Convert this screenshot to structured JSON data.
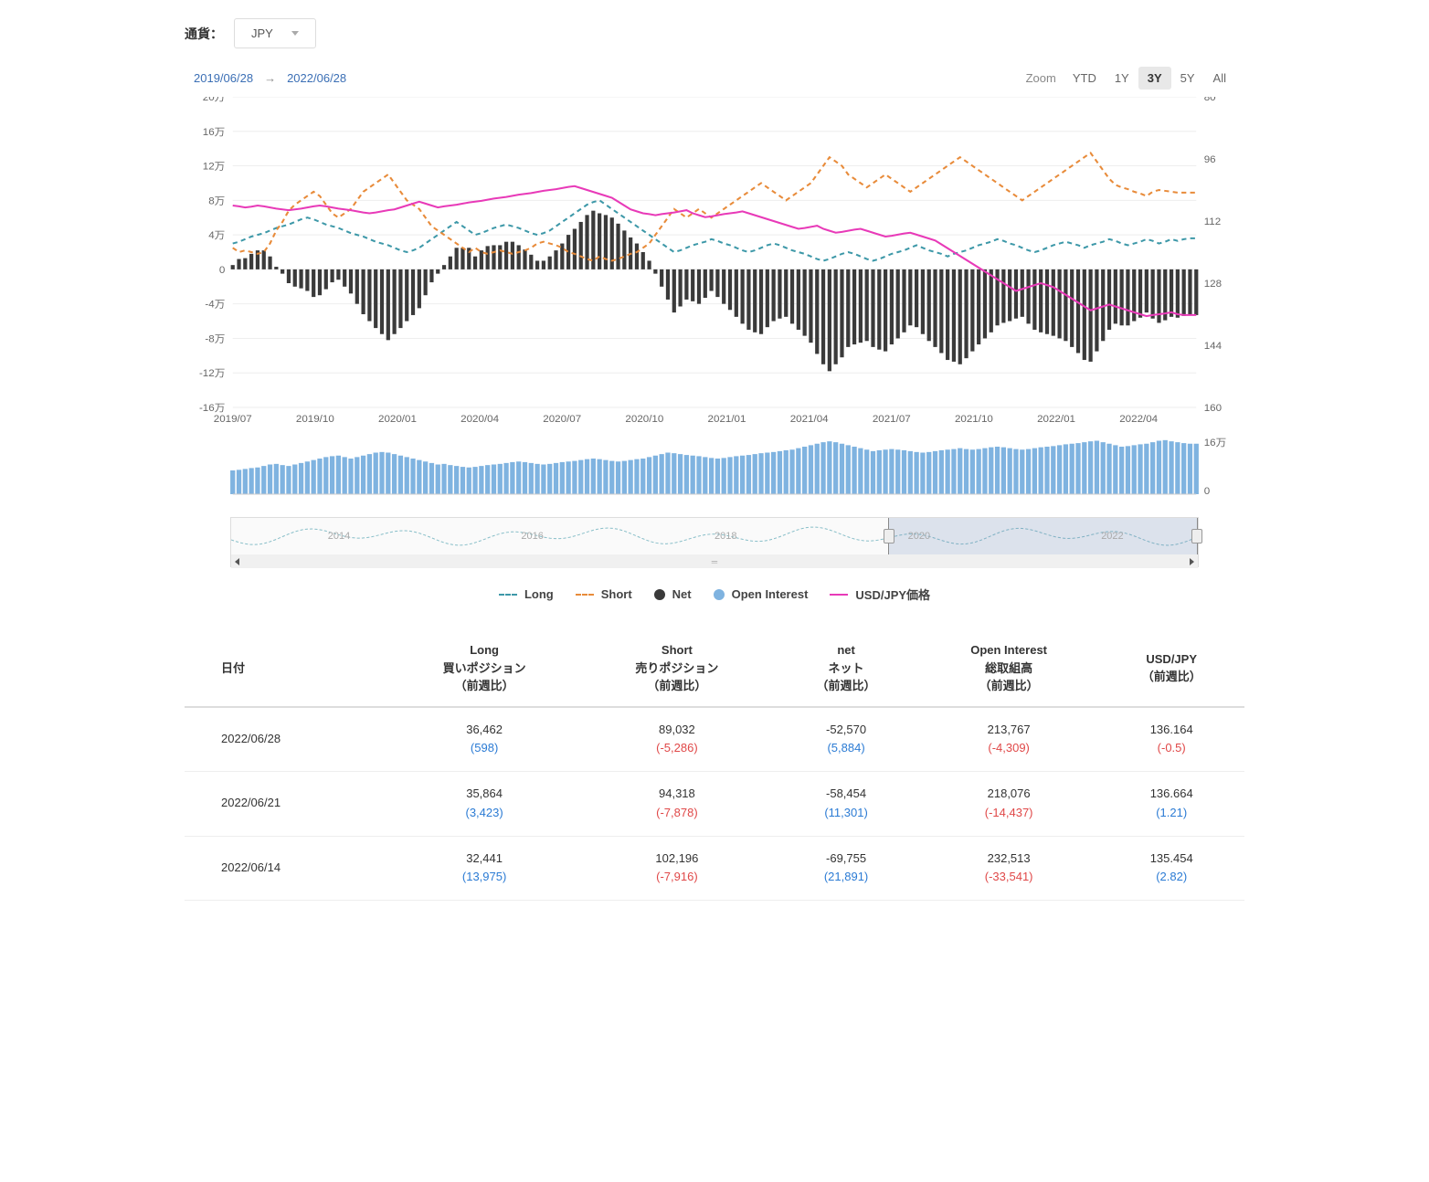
{
  "currency": {
    "label": "通貨：",
    "value": "JPY"
  },
  "dateRange": {
    "from": "2019/06/28",
    "to": "2022/06/28"
  },
  "zoom": {
    "label": "Zoom",
    "options": [
      "YTD",
      "1Y",
      "3Y",
      "5Y",
      "All"
    ],
    "active": "3Y"
  },
  "chart": {
    "left_axis_label_suffix": "万",
    "left_ticks": [
      20,
      16,
      12,
      8,
      4,
      0,
      -4,
      -8,
      -12,
      -16
    ],
    "right_ticks": [
      80,
      96,
      112,
      128,
      144,
      160
    ],
    "x_labels": [
      "2019/07",
      "2019/10",
      "2020/01",
      "2020/04",
      "2020/07",
      "2020/10",
      "2021/01",
      "2021/04",
      "2021/07",
      "2021/10",
      "2022/01",
      "2022/04"
    ],
    "colors": {
      "long": "#3d98a8",
      "short": "#e88b3a",
      "net": "#3a3a3a",
      "oi": "#7fb3e0",
      "price": "#e83ab8",
      "grid": "#eeeeee",
      "bg": "#ffffff"
    },
    "long_series": [
      3.0,
      3.2,
      3.5,
      3.8,
      4.0,
      4.2,
      4.5,
      4.8,
      5.0,
      5.2,
      5.5,
      5.8,
      6.0,
      5.8,
      5.5,
      5.2,
      5.0,
      4.8,
      4.5,
      4.2,
      4.0,
      3.8,
      3.5,
      3.2,
      3.0,
      2.8,
      2.5,
      2.2,
      2.0,
      2.2,
      2.5,
      3.0,
      3.5,
      4.0,
      4.5,
      5.0,
      5.5,
      5.0,
      4.5,
      4.0,
      4.2,
      4.5,
      4.8,
      5.0,
      5.2,
      5.0,
      4.8,
      4.5,
      4.2,
      4.0,
      4.2,
      4.5,
      5.0,
      5.5,
      6.0,
      6.5,
      7.0,
      7.5,
      7.8,
      8.0,
      7.5,
      7.0,
      6.5,
      6.0,
      5.5,
      5.0,
      4.5,
      4.0,
      3.5,
      3.0,
      2.5,
      2.0,
      2.2,
      2.5,
      2.8,
      3.0,
      3.2,
      3.5,
      3.3,
      3.0,
      2.8,
      2.5,
      2.2,
      2.0,
      2.2,
      2.5,
      2.8,
      3.0,
      2.8,
      2.5,
      2.2,
      2.0,
      1.8,
      1.5,
      1.2,
      1.0,
      1.2,
      1.5,
      1.8,
      2.0,
      1.8,
      1.5,
      1.2,
      1.0,
      1.2,
      1.5,
      1.8,
      2.0,
      2.2,
      2.5,
      2.8,
      2.5,
      2.2,
      2.0,
      1.8,
      1.5,
      1.8,
      2.0,
      2.2,
      2.5,
      2.8,
      3.0,
      3.2,
      3.5,
      3.3,
      3.0,
      2.8,
      2.5,
      2.2,
      2.0,
      2.2,
      2.5,
      2.8,
      3.0,
      3.2,
      3.0,
      2.8,
      2.5,
      2.8,
      3.0,
      3.2,
      3.5,
      3.3,
      3.0,
      2.8,
      3.0,
      3.2,
      3.5,
      3.3,
      3.0,
      3.2,
      3.5,
      3.3,
      3.5,
      3.6,
      3.6
    ],
    "short_series": [
      2.5,
      2.0,
      2.2,
      2.0,
      1.8,
      2.0,
      3.0,
      4.5,
      5.5,
      6.8,
      7.5,
      8.0,
      8.5,
      9.0,
      8.5,
      7.5,
      6.5,
      6.0,
      6.5,
      7.0,
      8.0,
      9.0,
      9.5,
      10.0,
      10.5,
      11.0,
      10.0,
      9.0,
      8.0,
      7.5,
      7.0,
      6.0,
      5.0,
      4.5,
      4.0,
      3.5,
      3.0,
      2.5,
      2.0,
      2.5,
      2.0,
      1.8,
      2.0,
      2.2,
      2.0,
      1.8,
      2.0,
      2.2,
      2.5,
      3.0,
      3.2,
      3.0,
      2.8,
      2.5,
      2.0,
      1.8,
      1.5,
      1.2,
      1.0,
      1.5,
      1.2,
      1.0,
      1.2,
      1.5,
      1.8,
      2.0,
      2.5,
      3.0,
      4.0,
      5.0,
      6.0,
      7.0,
      6.5,
      6.0,
      6.5,
      7.0,
      6.5,
      6.0,
      6.5,
      7.0,
      7.5,
      8.0,
      8.5,
      9.0,
      9.5,
      10.0,
      9.5,
      9.0,
      8.5,
      8.0,
      8.5,
      9.0,
      9.5,
      10.0,
      11.0,
      12.0,
      13.0,
      12.5,
      12.0,
      11.0,
      10.5,
      10.0,
      9.5,
      10.0,
      10.5,
      11.0,
      10.5,
      10.0,
      9.5,
      9.0,
      9.5,
      10.0,
      10.5,
      11.0,
      11.5,
      12.0,
      12.5,
      13.0,
      12.5,
      12.0,
      11.5,
      11.0,
      10.5,
      10.0,
      9.5,
      9.0,
      8.5,
      8.0,
      8.5,
      9.0,
      9.5,
      10.0,
      10.5,
      11.0,
      11.5,
      12.0,
      12.5,
      13.0,
      13.5,
      12.5,
      11.5,
      10.5,
      9.8,
      9.5,
      9.3,
      9.0,
      8.8,
      8.5,
      9.0,
      9.2,
      9.1,
      9.0,
      8.9,
      8.9,
      8.9,
      8.9
    ],
    "net_series": [
      0.5,
      1.2,
      1.3,
      1.8,
      2.2,
      2.2,
      1.5,
      0.3,
      -0.5,
      -1.6,
      -2.0,
      -2.2,
      -2.5,
      -3.2,
      -3.0,
      -2.3,
      -1.5,
      -1.2,
      -2.0,
      -2.8,
      -4.0,
      -5.2,
      -6.0,
      -6.8,
      -7.5,
      -8.2,
      -7.5,
      -6.8,
      -6.0,
      -5.3,
      -4.5,
      -3.0,
      -1.5,
      -0.5,
      0.5,
      1.5,
      2.5,
      2.5,
      2.5,
      1.5,
      2.2,
      2.7,
      2.8,
      2.8,
      3.2,
      3.2,
      2.8,
      2.3,
      1.7,
      1.0,
      1.0,
      1.5,
      2.2,
      3.0,
      4.0,
      4.7,
      5.5,
      6.3,
      6.8,
      6.5,
      6.3,
      6.0,
      5.3,
      4.5,
      3.7,
      3.0,
      2.0,
      1.0,
      -0.5,
      -2.0,
      -3.5,
      -5.0,
      -4.3,
      -3.5,
      -3.7,
      -4.0,
      -3.3,
      -2.5,
      -3.2,
      -4.0,
      -4.7,
      -5.5,
      -6.3,
      -7.0,
      -7.3,
      -7.5,
      -6.7,
      -6.0,
      -5.7,
      -5.5,
      -6.3,
      -7.0,
      -7.7,
      -8.5,
      -9.8,
      -11.0,
      -11.8,
      -11.0,
      -10.2,
      -9.0,
      -8.7,
      -8.5,
      -8.3,
      -9.0,
      -9.3,
      -9.5,
      -8.7,
      -8.0,
      -7.3,
      -6.5,
      -6.7,
      -7.5,
      -8.3,
      -9.0,
      -9.7,
      -10.5,
      -10.7,
      -11.0,
      -10.3,
      -9.5,
      -8.7,
      -8.0,
      -7.3,
      -6.5,
      -6.2,
      -6.0,
      -5.7,
      -5.5,
      -6.3,
      -7.0,
      -7.3,
      -7.5,
      -7.7,
      -8.0,
      -8.3,
      -9.0,
      -9.7,
      -10.5,
      -10.7,
      -9.5,
      -8.3,
      -7.0,
      -6.3,
      -6.5,
      -6.5,
      -6.0,
      -5.6,
      -5.0,
      -5.7,
      -6.2,
      -5.9,
      -5.5,
      -5.6,
      -5.4,
      -5.3,
      -5.3
    ],
    "price_series": [
      108,
      108.2,
      108.5,
      108.3,
      108.0,
      108.2,
      108.5,
      108.8,
      109.0,
      109.2,
      109.0,
      108.8,
      108.5,
      108.2,
      108.0,
      108.2,
      108.5,
      108.8,
      109.0,
      109.2,
      109.5,
      109.8,
      110.0,
      109.8,
      109.5,
      109.2,
      109.0,
      108.5,
      108.0,
      107.5,
      107.0,
      107.5,
      108.0,
      108.5,
      108.2,
      108.0,
      107.8,
      107.5,
      107.2,
      107.0,
      106.8,
      106.5,
      106.2,
      106.0,
      105.8,
      105.5,
      105.2,
      105.0,
      104.8,
      104.5,
      104.2,
      104.0,
      103.8,
      103.5,
      103.2,
      103.0,
      103.5,
      104.0,
      104.5,
      105.0,
      105.5,
      106.0,
      107.0,
      108.0,
      109.0,
      109.5,
      110.0,
      110.2,
      110.5,
      110.2,
      110.0,
      109.8,
      109.5,
      109.2,
      110.0,
      110.5,
      111.0,
      110.8,
      110.5,
      110.2,
      110.0,
      109.8,
      109.5,
      110.0,
      110.5,
      111.0,
      111.5,
      112.0,
      112.5,
      113.0,
      113.5,
      114.0,
      113.8,
      113.5,
      113.2,
      114.0,
      114.5,
      115.0,
      114.8,
      114.5,
      114.2,
      114.0,
      114.5,
      115.0,
      115.5,
      116.0,
      115.8,
      115.5,
      115.2,
      115.0,
      115.5,
      116.0,
      116.5,
      117.0,
      118.0,
      119.0,
      120.0,
      121.0,
      122.0,
      123.0,
      124.0,
      125.0,
      126.0,
      127.0,
      128.0,
      129.0,
      130.0,
      129.5,
      129.0,
      128.5,
      128.0,
      128.5,
      129.0,
      130.0,
      131.0,
      132.0,
      133.0,
      134.0,
      135.0,
      134.5,
      134.0,
      133.5,
      134.0,
      134.5,
      135.0,
      135.5,
      136.0,
      136.5,
      136.2,
      136.0,
      135.8,
      135.5,
      136.0,
      136.2,
      136.2,
      136.2
    ],
    "oi_series": [
      8,
      8.2,
      8.5,
      8.8,
      9,
      9.5,
      10,
      10.2,
      9.8,
      9.5,
      10,
      10.5,
      11,
      11.5,
      12,
      12.5,
      12.8,
      13,
      12.5,
      12,
      12.5,
      13,
      13.5,
      14,
      14.2,
      14,
      13.5,
      13,
      12.5,
      12,
      11.5,
      11,
      10.5,
      10,
      10.2,
      9.8,
      9.5,
      9.2,
      9,
      9.2,
      9.5,
      9.8,
      10,
      10.2,
      10.5,
      10.8,
      11,
      10.8,
      10.5,
      10.2,
      10,
      10.2,
      10.5,
      10.8,
      11,
      11.2,
      11.5,
      11.8,
      12,
      11.8,
      11.5,
      11.2,
      11,
      11.2,
      11.5,
      11.8,
      12,
      12.5,
      13,
      13.5,
      14,
      13.8,
      13.5,
      13.2,
      13,
      12.8,
      12.5,
      12.2,
      12,
      12.2,
      12.5,
      12.8,
      13,
      13.2,
      13.5,
      13.8,
      14,
      14.2,
      14.5,
      14.8,
      15,
      15.5,
      16,
      16.5,
      17,
      17.5,
      17.8,
      17.5,
      17,
      16.5,
      16,
      15.5,
      15,
      14.5,
      14.8,
      15,
      15.2,
      15,
      14.8,
      14.5,
      14.2,
      14,
      14.2,
      14.5,
      14.8,
      15,
      15.2,
      15.5,
      15.2,
      15,
      15.2,
      15.5,
      15.8,
      16,
      15.8,
      15.5,
      15.2,
      15,
      15.2,
      15.5,
      15.8,
      16,
      16.2,
      16.5,
      16.8,
      17,
      17.2,
      17.5,
      17.8,
      18,
      17.5,
      17,
      16.5,
      16,
      16.2,
      16.5,
      16.8,
      17,
      17.5,
      18,
      18.2,
      17.8,
      17.5,
      17.2,
      17,
      17
    ],
    "oi_right_ticks": [
      "16万",
      "0"
    ]
  },
  "navigator": {
    "years": [
      "2014",
      "2016",
      "2018",
      "2020",
      "2022"
    ],
    "selection_start_pct": 68,
    "selection_end_pct": 100
  },
  "legend": {
    "long": "Long",
    "short": "Short",
    "net": "Net",
    "oi": "Open Interest",
    "price": "USD/JPY価格"
  },
  "table": {
    "headers": {
      "date": "日付",
      "long": [
        "Long",
        "買いポジション",
        "（前週比）"
      ],
      "short": [
        "Short",
        "売りポジション",
        "（前週比）"
      ],
      "net": [
        "net",
        "ネット",
        "（前週比）"
      ],
      "oi": [
        "Open Interest",
        "総取組高",
        "（前週比）"
      ],
      "price": [
        "USD/JPY",
        "（前週比）"
      ]
    },
    "rows": [
      {
        "date": "2022/06/28",
        "long": "36,462",
        "long_d": "(598)",
        "long_s": "pos",
        "short": "89,032",
        "short_d": "(-5,286)",
        "short_s": "neg",
        "net": "-52,570",
        "net_d": "(5,884)",
        "net_s": "pos",
        "oi": "213,767",
        "oi_d": "(-4,309)",
        "oi_s": "neg",
        "price": "136.164",
        "price_d": "(-0.5)",
        "price_s": "neg"
      },
      {
        "date": "2022/06/21",
        "long": "35,864",
        "long_d": "(3,423)",
        "long_s": "pos",
        "short": "94,318",
        "short_d": "(-7,878)",
        "short_s": "neg",
        "net": "-58,454",
        "net_d": "(11,301)",
        "net_s": "pos",
        "oi": "218,076",
        "oi_d": "(-14,437)",
        "oi_s": "neg",
        "price": "136.664",
        "price_d": "(1.21)",
        "price_s": "pos"
      },
      {
        "date": "2022/06/14",
        "long": "32,441",
        "long_d": "(13,975)",
        "long_s": "pos",
        "short": "102,196",
        "short_d": "(-7,916)",
        "short_s": "neg",
        "net": "-69,755",
        "net_d": "(21,891)",
        "net_s": "pos",
        "oi": "232,513",
        "oi_d": "(-33,541)",
        "oi_s": "neg",
        "price": "135.454",
        "price_d": "(2.82)",
        "price_s": "pos"
      }
    ]
  }
}
